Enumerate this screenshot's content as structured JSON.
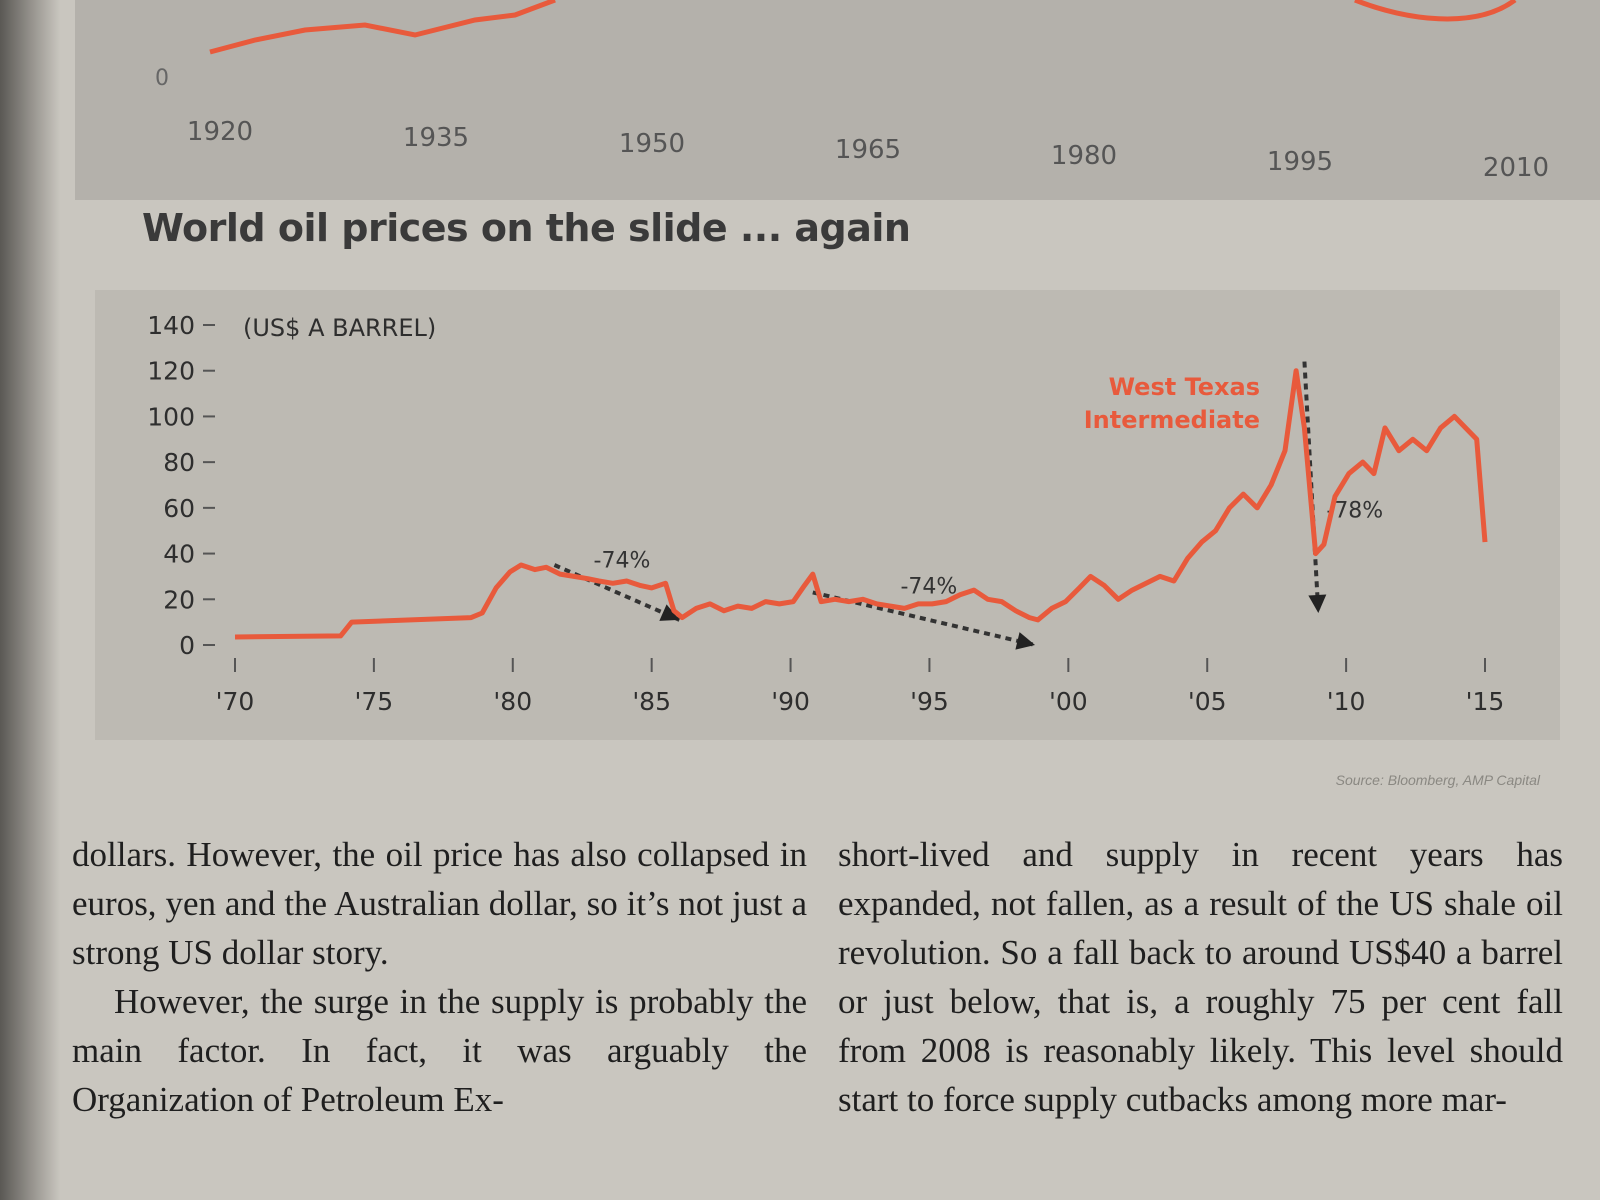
{
  "top_chart": {
    "x_ticks": [
      "1920",
      "1935",
      "1950",
      "1965",
      "1980",
      "1995",
      "2010"
    ],
    "y_ticks": [
      "0"
    ]
  },
  "chart_data": {
    "type": "line",
    "title": "World oil prices on the slide ... again",
    "ylabel": "(US$ A BARREL)",
    "xlabel": "",
    "ylim": [
      0,
      140
    ],
    "xlim": [
      1970,
      2015
    ],
    "y_ticks": [
      0,
      20,
      40,
      60,
      80,
      100,
      120,
      140
    ],
    "x_ticks": [
      "'70",
      "'75",
      "'80",
      "'85",
      "'90",
      "'95",
      "'00",
      "'05",
      "'10",
      "'15"
    ],
    "x_tick_values": [
      1970,
      1975,
      1980,
      1985,
      1990,
      1995,
      2000,
      2005,
      2010,
      2015
    ],
    "grid": false,
    "series": [
      {
        "name": "West Texas Intermediate",
        "color": "#e85a3c",
        "x": [
          1970,
          1973.8,
          1974.2,
          1978.5,
          1978.9,
          1979.4,
          1979.9,
          1980.3,
          1980.8,
          1981.2,
          1981.7,
          1982.2,
          1982.7,
          1983.1,
          1983.6,
          1984.1,
          1984.6,
          1985.0,
          1985.5,
          1985.8,
          1986.1,
          1986.6,
          1987.1,
          1987.6,
          1988.1,
          1988.6,
          1989.1,
          1989.6,
          1990.1,
          1990.5,
          1990.8,
          1991.1,
          1991.6,
          1992.1,
          1992.6,
          1993.1,
          1993.6,
          1994.1,
          1994.6,
          1995.1,
          1995.6,
          1996.1,
          1996.6,
          1997.1,
          1997.6,
          1998.1,
          1998.6,
          1998.9,
          1999.4,
          1999.9,
          2000.4,
          2000.8,
          2001.3,
          2001.8,
          2002.3,
          2002.8,
          2003.3,
          2003.8,
          2004.3,
          2004.8,
          2005.3,
          2005.8,
          2006.3,
          2006.8,
          2007.3,
          2007.8,
          2008.2,
          2008.5,
          2008.9,
          2009.2,
          2009.6,
          2010.1,
          2010.6,
          2011.0,
          2011.4,
          2011.9,
          2012.4,
          2012.9,
          2013.4,
          2013.9,
          2014.3,
          2014.7,
          2015.0
        ],
        "y": [
          3.5,
          4,
          10,
          12,
          14,
          25,
          32,
          35,
          33,
          34,
          31,
          30,
          29,
          28,
          27,
          28,
          26,
          25,
          27,
          15,
          12,
          16,
          18,
          15,
          17,
          16,
          19,
          18,
          19,
          26,
          31,
          19,
          20,
          19,
          20,
          18,
          17,
          16,
          18,
          18,
          19,
          22,
          24,
          20,
          19,
          15,
          12,
          11,
          16,
          19,
          25,
          30,
          26,
          20,
          24,
          27,
          30,
          28,
          38,
          45,
          50,
          60,
          66,
          60,
          70,
          85,
          120,
          95,
          40,
          44,
          65,
          75,
          80,
          75,
          95,
          85,
          90,
          85,
          95,
          100,
          95,
          90,
          45
        ]
      }
    ],
    "annotations": [
      {
        "text": "-74%",
        "from": [
          1981.5,
          35
        ],
        "to": [
          1986.0,
          11
        ]
      },
      {
        "text": "-74%",
        "from": [
          1990.8,
          23
        ],
        "to": [
          1998.8,
          0
        ]
      },
      {
        "text": "-78%",
        "from": [
          2008.5,
          124
        ],
        "to": [
          2009.0,
          14
        ]
      }
    ],
    "legend": "top-right"
  },
  "source_text": "Source: Bloomberg, AMP Capital",
  "article": {
    "left": [
      "dollars. However, the oil price has also collapsed in euros, yen and the Australian dollar, so it’s not just a strong US dollar story.",
      "However, the surge in the supply is probably the main factor. In fact, it was arguably the Organization of Petroleum Ex-"
    ],
    "right": [
      "short-lived and supply in recent years has expanded, not fallen, as a result of the US shale oil revolution. So a fall back to around US$40 a barrel or just below, that is, a roughly 75 per cent fall from 2008 is reasonably likely. This level should start to force supply cutbacks among more mar-"
    ]
  }
}
